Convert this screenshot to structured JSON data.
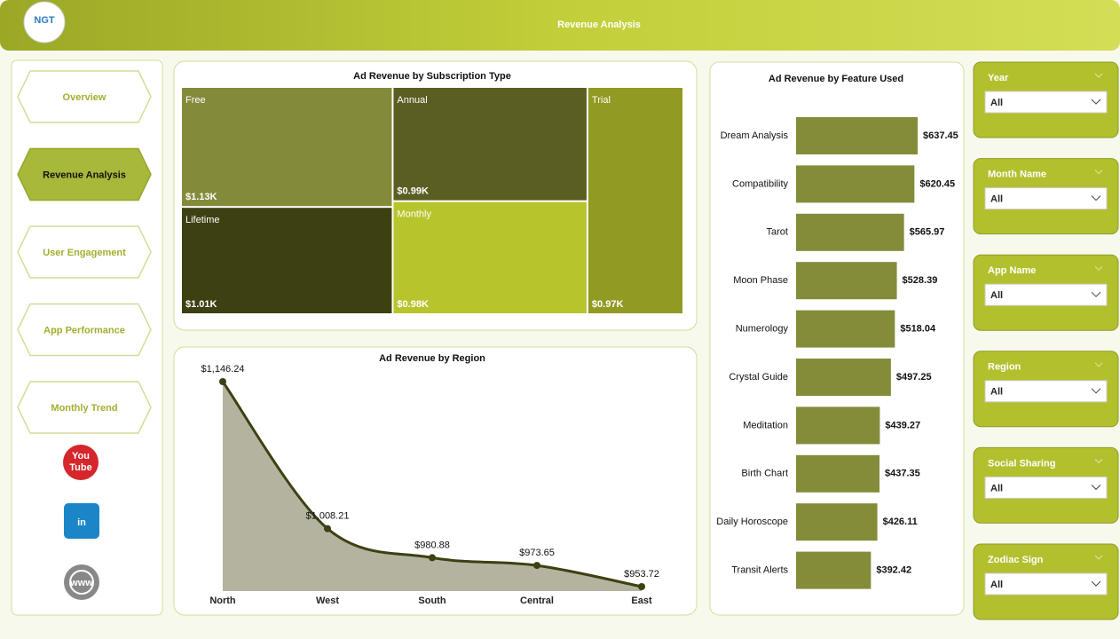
{
  "header": {
    "title": "Revenue Analysis",
    "logo": "NGT"
  },
  "nav": {
    "items": [
      "Overview",
      "Revenue Analysis",
      "User Engagement",
      "App Performance",
      "Monthly Trend"
    ]
  },
  "icons": {
    "youtube": [
      "You",
      "Tube"
    ],
    "linkedin": "in",
    "web": "www"
  },
  "filters": [
    {
      "label": "Year",
      "value": "All"
    },
    {
      "label": "Month Name",
      "value": "All"
    },
    {
      "label": "App Name",
      "value": "All"
    },
    {
      "label": "Region",
      "value": "All"
    },
    {
      "label": "Social Sharing",
      "value": "All"
    },
    {
      "label": "Zodiac Sign",
      "value": "All"
    }
  ],
  "chart_data": [
    {
      "type": "treemap",
      "title": "Ad Revenue by Subscription Type",
      "categories": [
        "Free",
        "Lifetime",
        "Annual",
        "Monthly",
        "Trial"
      ],
      "values": [
        1130,
        1010,
        990,
        980,
        970
      ],
      "value_labels": [
        "$1.13K",
        "$1.01K",
        "$0.99K",
        "$0.98K",
        "$0.97K"
      ],
      "colors": [
        "#838b3a",
        "#3d4011",
        "#5a5e22",
        "#b8c42c",
        "#919a22"
      ]
    },
    {
      "type": "area",
      "title": "Ad Revenue by Region",
      "categories": [
        "North",
        "West",
        "South",
        "Central",
        "East"
      ],
      "values": [
        1146.24,
        1008.21,
        980.88,
        973.65,
        953.72
      ],
      "value_labels": [
        "$1,146.24",
        "$1,008.21",
        "$980.88",
        "$973.65",
        "$953.72"
      ],
      "color": "#3d4011",
      "fill": "#b3b3a0"
    },
    {
      "type": "bar",
      "orientation": "horizontal",
      "title": "Ad Revenue by Feature Used",
      "categories": [
        "Dream Analysis",
        "Compatibility",
        "Tarot",
        "Moon Phase",
        "Numerology",
        "Crystal Guide",
        "Meditation",
        "Birth Chart",
        "Daily Horoscope",
        "Transit Alerts"
      ],
      "values": [
        637.45,
        620.45,
        565.97,
        528.39,
        518.04,
        497.25,
        439.27,
        437.35,
        426.11,
        392.42
      ],
      "value_labels": [
        "$637.45",
        "$620.45",
        "$565.97",
        "$528.39",
        "$518.04",
        "$497.25",
        "$439.27",
        "$437.35",
        "$426.11",
        "$392.42"
      ],
      "color": "#848c3a"
    }
  ]
}
